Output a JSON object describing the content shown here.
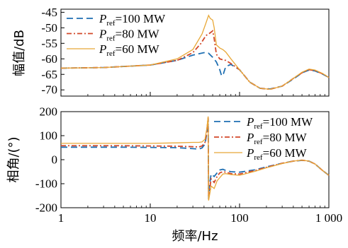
{
  "chart_data": [
    {
      "type": "line",
      "xscale": "log",
      "xlim": [
        1,
        1000
      ],
      "ylim": [
        -72,
        -44
      ],
      "ylabel": "幅值/dB",
      "yticks": [
        "-45",
        "-50",
        "-55",
        "-60",
        "-65",
        "-70"
      ],
      "ytick_values": [
        -45,
        -50,
        -55,
        -60,
        -65,
        -70
      ],
      "legend": "top-left",
      "series": [
        {
          "label": "100 MW",
          "color": "#1f6fb2",
          "dash": "9,5",
          "points": [
            [
              1,
              -63
            ],
            [
              3,
              -62.8
            ],
            [
              10,
              -62
            ],
            [
              20,
              -60.5
            ],
            [
              30,
              -58.8
            ],
            [
              40,
              -58
            ],
            [
              45,
              -58.2
            ],
            [
              50,
              -59.5
            ],
            [
              55,
              -61
            ],
            [
              60,
              -63.5
            ],
            [
              63,
              -65.5
            ],
            [
              66,
              -64.8
            ],
            [
              70,
              -62.5
            ],
            [
              80,
              -61.8
            ],
            [
              100,
              -63.5
            ],
            [
              130,
              -67.5
            ],
            [
              170,
              -69.5
            ],
            [
              220,
              -69.7
            ],
            [
              300,
              -68.8
            ],
            [
              400,
              -66.5
            ],
            [
              500,
              -64.5
            ],
            [
              600,
              -63.6
            ],
            [
              700,
              -63.9
            ],
            [
              850,
              -64.9
            ],
            [
              1000,
              -66
            ]
          ]
        },
        {
          "label": "80 MW",
          "color": "#d2482a",
          "dash": "7,3,2,3",
          "points": [
            [
              1,
              -63
            ],
            [
              3,
              -62.8
            ],
            [
              10,
              -62
            ],
            [
              20,
              -60.5
            ],
            [
              30,
              -58
            ],
            [
              37,
              -55
            ],
            [
              42,
              -52.5
            ],
            [
              46,
              -51.8
            ],
            [
              50,
              -51
            ],
            [
              52,
              -53.5
            ],
            [
              55,
              -58.5
            ],
            [
              60,
              -60
            ],
            [
              65,
              -60.3
            ],
            [
              70,
              -60.5
            ],
            [
              80,
              -61.5
            ],
            [
              100,
              -63.5
            ],
            [
              130,
              -67.5
            ],
            [
              170,
              -69.5
            ],
            [
              220,
              -69.8
            ],
            [
              300,
              -68.8
            ],
            [
              400,
              -66.3
            ],
            [
              500,
              -64.5
            ],
            [
              600,
              -63.5
            ],
            [
              700,
              -63.8
            ],
            [
              850,
              -64.8
            ],
            [
              1000,
              -66
            ]
          ]
        },
        {
          "label": "60 MW",
          "color": "#e8a838",
          "dash": "",
          "points": [
            [
              1,
              -63
            ],
            [
              3,
              -62.8
            ],
            [
              10,
              -62
            ],
            [
              20,
              -60
            ],
            [
              30,
              -57
            ],
            [
              38,
              -52
            ],
            [
              42,
              -48.5
            ],
            [
              45,
              -46
            ],
            [
              47,
              -47
            ],
            [
              50,
              -47.5
            ],
            [
              52,
              -50
            ],
            [
              55,
              -55.5
            ],
            [
              60,
              -56.5
            ],
            [
              65,
              -57
            ],
            [
              70,
              -57.8
            ],
            [
              80,
              -60
            ],
            [
              100,
              -63.5
            ],
            [
              130,
              -67.5
            ],
            [
              170,
              -69.5
            ],
            [
              220,
              -69.8
            ],
            [
              300,
              -68.8
            ],
            [
              400,
              -66.3
            ],
            [
              500,
              -64.3
            ],
            [
              600,
              -63.3
            ],
            [
              700,
              -63.6
            ],
            [
              850,
              -64.7
            ],
            [
              1000,
              -66
            ]
          ]
        }
      ]
    },
    {
      "type": "line",
      "xscale": "log",
      "xlim": [
        1,
        1000
      ],
      "ylim": [
        -200,
        200
      ],
      "xlabel": "频率/Hz",
      "ylabel": "相角/(°)",
      "xticks": [
        "1",
        "10",
        "100",
        "1 000"
      ],
      "xtick_values": [
        1,
        10,
        100,
        1000
      ],
      "yticks": [
        "200",
        "100",
        "0",
        "-100",
        "-200"
      ],
      "ytick_values": [
        200,
        100,
        0,
        -100,
        -200
      ],
      "legend": "top-right",
      "series": [
        {
          "label": "100 MW",
          "color": "#1f6fb2",
          "dash": "9,5",
          "points": [
            [
              1,
              52
            ],
            [
              5,
              52
            ],
            [
              10,
              51
            ],
            [
              20,
              50
            ],
            [
              30,
              46
            ],
            [
              35,
              44
            ],
            [
              38,
              49
            ],
            [
              41,
              65
            ],
            [
              43,
              110
            ],
            [
              44.5,
              170
            ],
            [
              45,
              -160
            ],
            [
              46,
              -110
            ],
            [
              48,
              -60
            ],
            [
              52,
              -70
            ],
            [
              56,
              -55
            ],
            [
              60,
              -43
            ],
            [
              65,
              -40
            ],
            [
              70,
              -45
            ],
            [
              80,
              -50
            ],
            [
              100,
              -52
            ],
            [
              150,
              -42
            ],
            [
              200,
              -30
            ],
            [
              300,
              -15
            ],
            [
              400,
              -6
            ],
            [
              500,
              -3
            ],
            [
              600,
              -6
            ],
            [
              700,
              -18
            ],
            [
              850,
              -45
            ],
            [
              1000,
              -65
            ]
          ]
        },
        {
          "label": "80 MW",
          "color": "#d2482a",
          "dash": "7,3,2,3",
          "points": [
            [
              1,
              58
            ],
            [
              5,
              58
            ],
            [
              10,
              57
            ],
            [
              20,
              56
            ],
            [
              30,
              54
            ],
            [
              35,
              53
            ],
            [
              38,
              57
            ],
            [
              41,
              72
            ],
            [
              43,
              120
            ],
            [
              44.5,
              175
            ],
            [
              45,
              -165
            ],
            [
              46,
              -130
            ],
            [
              48,
              -80
            ],
            [
              52,
              -95
            ],
            [
              56,
              -70
            ],
            [
              60,
              -55
            ],
            [
              65,
              -50
            ],
            [
              70,
              -52
            ],
            [
              80,
              -58
            ],
            [
              100,
              -60
            ],
            [
              150,
              -45
            ],
            [
              200,
              -32
            ],
            [
              300,
              -15
            ],
            [
              400,
              -6
            ],
            [
              500,
              -2
            ],
            [
              600,
              -6
            ],
            [
              700,
              -18
            ],
            [
              850,
              -45
            ],
            [
              1000,
              -65
            ]
          ]
        },
        {
          "label": "60 MW",
          "color": "#e8a838",
          "dash": "",
          "points": [
            [
              1,
              68
            ],
            [
              5,
              68
            ],
            [
              10,
              68
            ],
            [
              20,
              70
            ],
            [
              30,
              72
            ],
            [
              35,
              72
            ],
            [
              38,
              74
            ],
            [
              41,
              85
            ],
            [
              43,
              130
            ],
            [
              44.5,
              180
            ],
            [
              45,
              -170
            ],
            [
              46,
              -150
            ],
            [
              48,
              -110
            ],
            [
              52,
              -120
            ],
            [
              56,
              -88
            ],
            [
              60,
              -75
            ],
            [
              65,
              -60
            ],
            [
              70,
              -58
            ],
            [
              80,
              -62
            ],
            [
              100,
              -65
            ],
            [
              150,
              -48
            ],
            [
              200,
              -34
            ],
            [
              300,
              -16
            ],
            [
              400,
              -6
            ],
            [
              500,
              -2
            ],
            [
              600,
              -6
            ],
            [
              700,
              -18
            ],
            [
              850,
              -45
            ],
            [
              1000,
              -65
            ]
          ]
        }
      ]
    }
  ],
  "legend_labels": {
    "p_main": "P",
    "p_sub": "ref",
    "eq": "="
  }
}
